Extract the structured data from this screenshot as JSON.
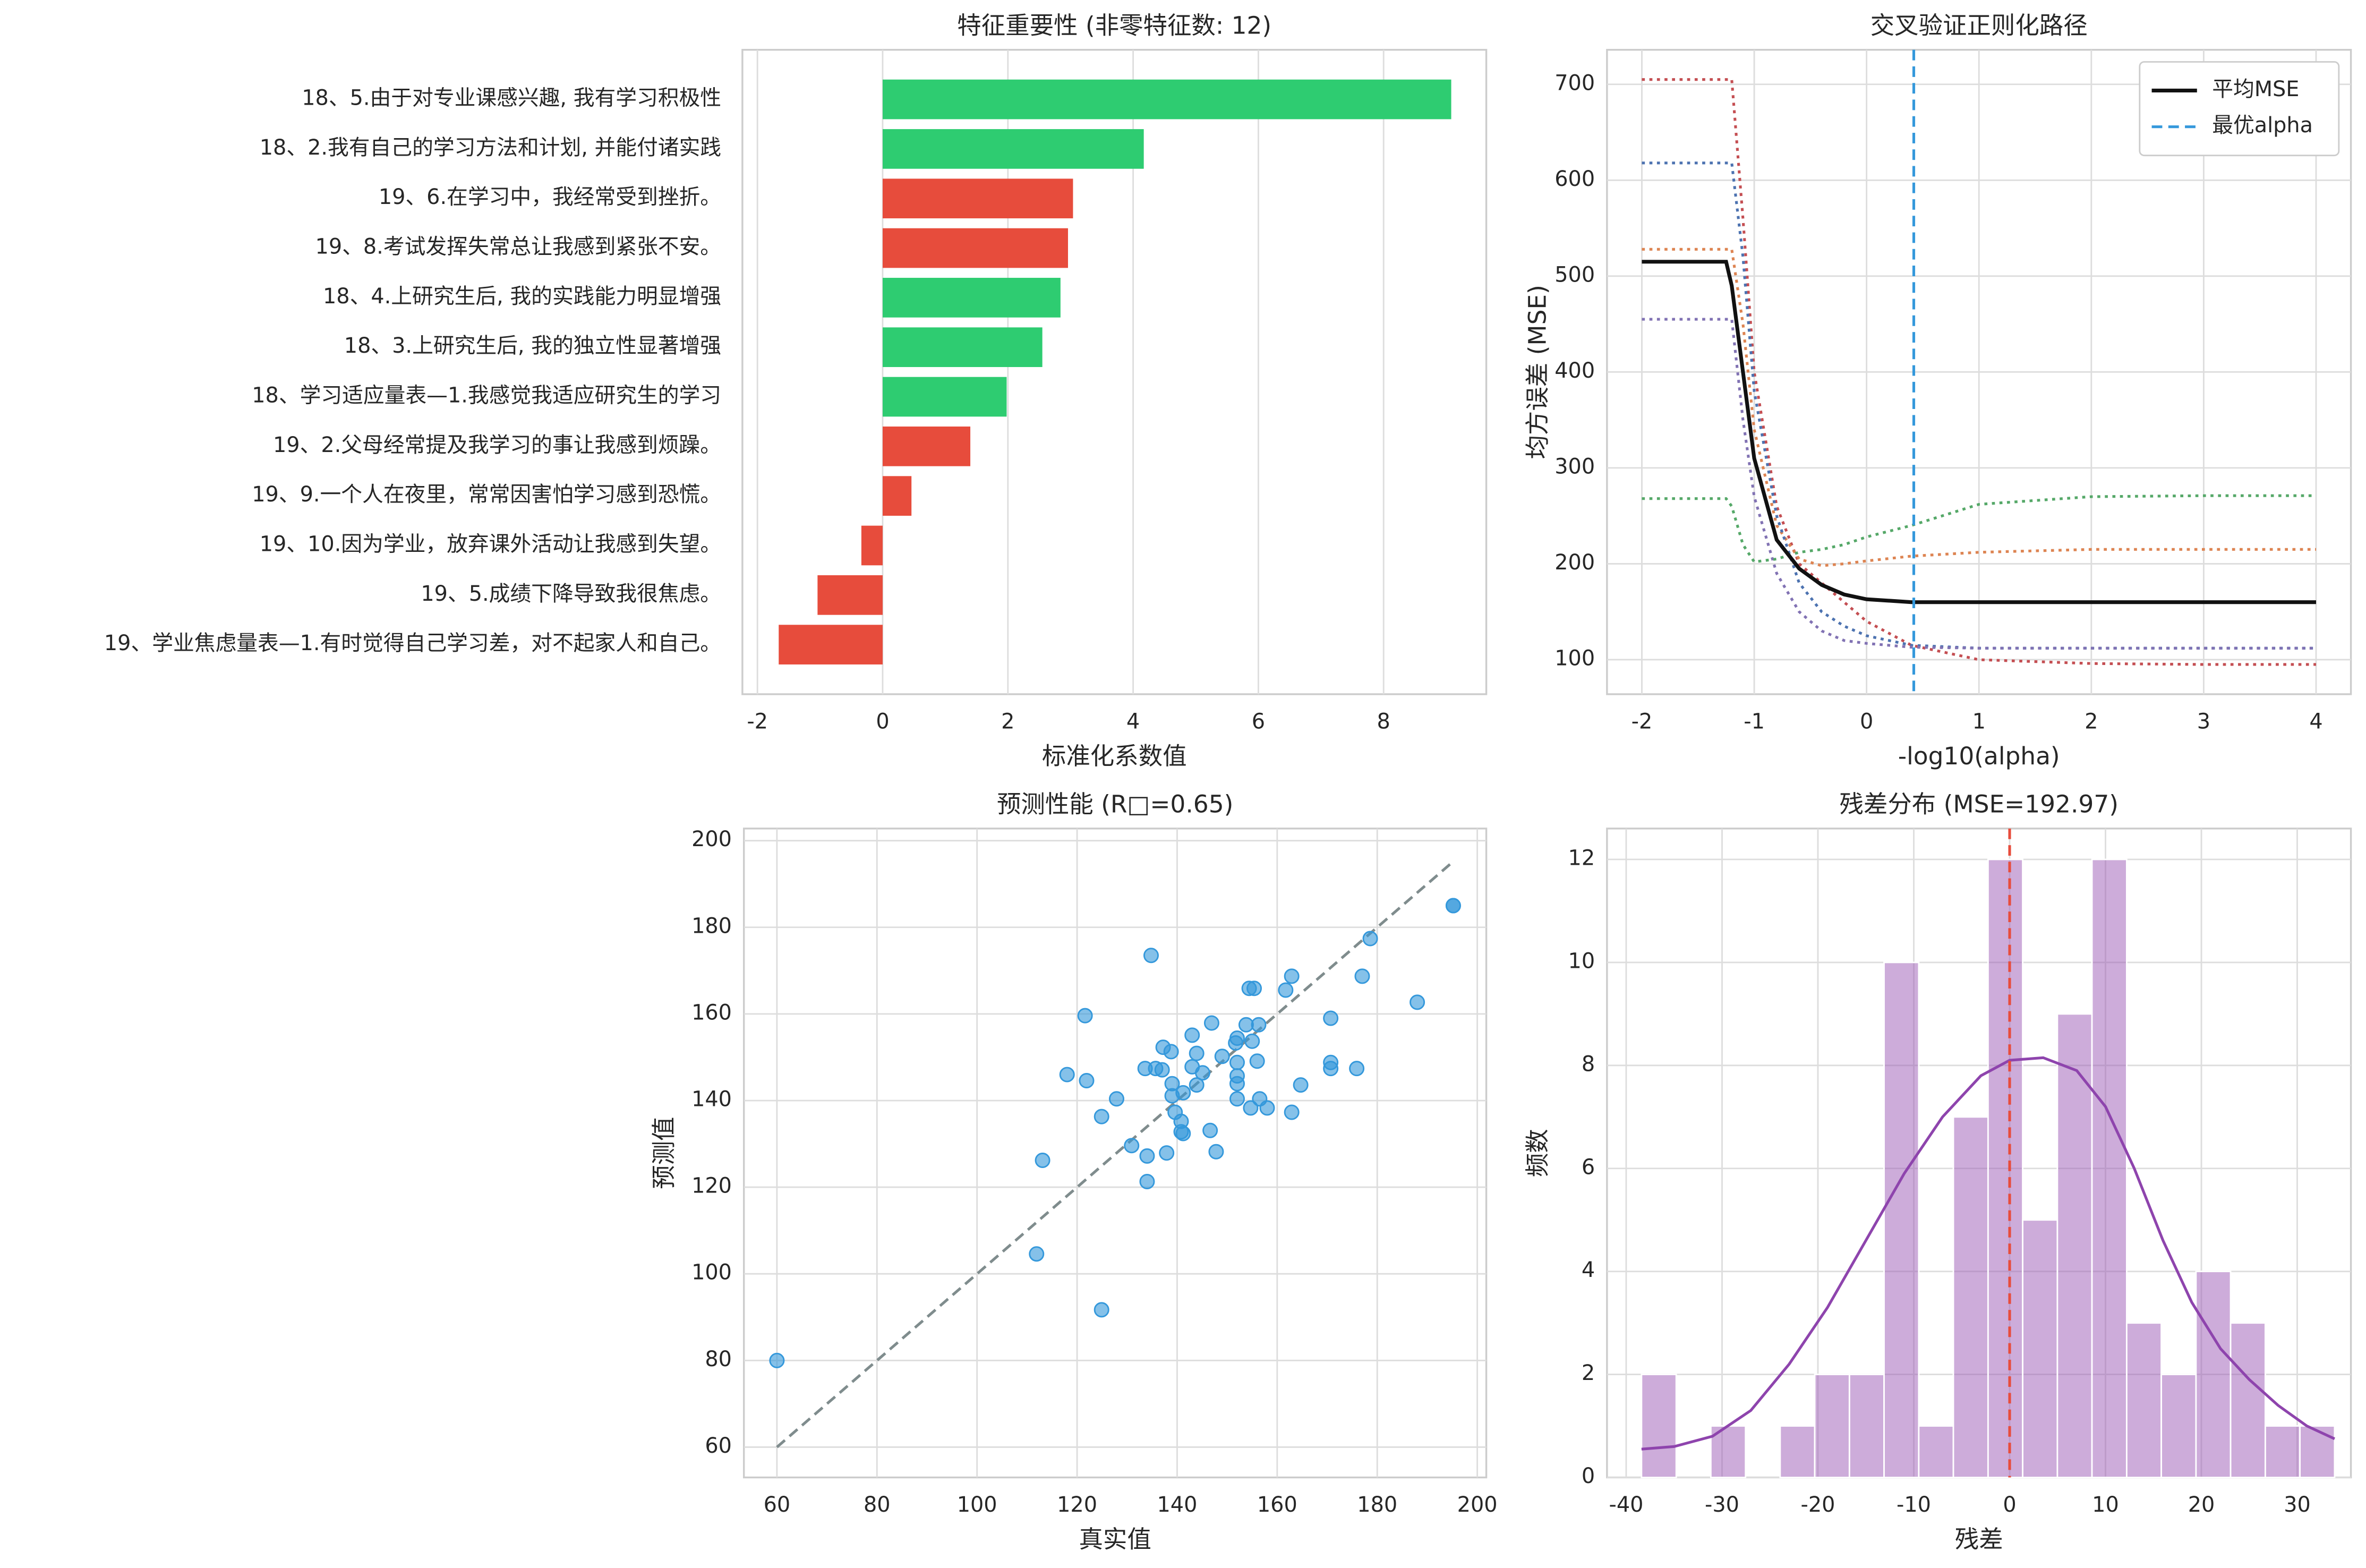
{
  "chart_data": [
    {
      "type": "barh",
      "title": "特征重要性 (非零特征数: 12)",
      "x_label": "标准化系数值",
      "categories": [
        "18、5.由于对专业课感兴趣, 我有学习积极性",
        "18、2.我有自己的学习方法和计划, 并能付诸实践",
        "19、6.在学习中，我经常受到挫折。",
        "19、8.考试发挥失常总让我感到紧张不安。",
        "18、4.上研究生后, 我的实践能力明显增强",
        "18、3.上研究生后, 我的独立性显著增强",
        "18、学习适应量表—1.我感觉我适应研究生的学习",
        "19、2.父母经常提及我学习的事让我感到烦躁。",
        "19、9.一个人在夜里，常常因害怕学习感到恐慌。",
        "19、10.因为学业，放弃课外活动让我感到失望。",
        "19、5.成绩下降导致我很焦虑。",
        "19、学业焦虑量表—1.有时觉得自己学习差，对不起家人和自己。"
      ],
      "values": [
        9.08,
        4.17,
        3.04,
        2.96,
        2.84,
        2.55,
        1.98,
        1.4,
        0.46,
        -0.34,
        -1.04,
        -1.66
      ],
      "colors": [
        "#2ecc71",
        "#2ecc71",
        "#e74c3c",
        "#e74c3c",
        "#2ecc71",
        "#2ecc71",
        "#2ecc71",
        "#e74c3c",
        "#e74c3c",
        "#e74c3c",
        "#e74c3c",
        "#e74c3c"
      ],
      "xlim": [
        -2.24,
        9.64
      ],
      "xticks": [
        -2,
        0,
        2,
        4,
        6,
        8
      ],
      "grid": true
    },
    {
      "type": "line",
      "title": "交叉验证正则化路径",
      "x_label": "-log10(alpha)",
      "y_label": "均方误差 (MSE)",
      "x": [
        -2,
        -1.25,
        -1.2,
        -1.1,
        -1.0,
        -0.8,
        -0.6,
        -0.4,
        -0.2,
        0,
        0.4,
        1,
        2,
        3,
        4
      ],
      "series": [
        {
          "color": "#c44e52",
          "linestyle": "dotted",
          "values": [
            705,
            705,
            705,
            560,
            400,
            260,
            200,
            180,
            160,
            140,
            115,
            100,
            96,
            95,
            95
          ]
        },
        {
          "color": "#dd8452",
          "linestyle": "dotted",
          "values": [
            528,
            528,
            528,
            450,
            340,
            240,
            205,
            198,
            200,
            203,
            208,
            212,
            215,
            215,
            215
          ]
        },
        {
          "color": "#4c72b0",
          "linestyle": "dotted",
          "values": [
            618,
            618,
            618,
            520,
            380,
            250,
            180,
            150,
            135,
            125,
            115,
            112,
            112,
            112,
            112
          ]
        },
        {
          "color": "#8172b3",
          "linestyle": "dotted",
          "values": [
            455,
            455,
            455,
            350,
            270,
            190,
            150,
            130,
            120,
            117,
            113,
            112,
            112,
            112,
            112
          ]
        },
        {
          "color": "#55a868",
          "linestyle": "dotted",
          "values": [
            268,
            268,
            260,
            220,
            202,
            205,
            212,
            215,
            220,
            228,
            240,
            262,
            270,
            271,
            271
          ]
        },
        {
          "name": "平均MSE",
          "color": "#111111",
          "linestyle": "solid",
          "values": [
            515,
            515,
            490,
            400,
            310,
            225,
            195,
            178,
            168,
            163,
            160,
            160,
            160,
            160,
            160
          ]
        }
      ],
      "vlines": [
        {
          "name": "最优alpha",
          "x": 0.42,
          "color": "#3498db"
        }
      ],
      "xlim": [
        -2.31,
        4.31
      ],
      "ylim": [
        64,
        736
      ],
      "xticks": [
        -2,
        -1,
        0,
        1,
        2,
        3,
        4
      ],
      "yticks": [
        100,
        200,
        300,
        400,
        500,
        600,
        700
      ],
      "grid": true,
      "legend": "upper-right"
    },
    {
      "type": "scatter",
      "title": "预测性能 (R□=0.65)",
      "x_label": "真实值",
      "y_label": "预测值",
      "color": "#3498db",
      "x": [
        60,
        195.2,
        195.2,
        178.6,
        188,
        177,
        170.7,
        170.7,
        170.7,
        175.9,
        162.9,
        161.7,
        164.7,
        162.9,
        155.4,
        154.4,
        153.8,
        156.3,
        155,
        156,
        156.5,
        158,
        154.7,
        152,
        151.7,
        152,
        152,
        152,
        152,
        149,
        146.9,
        143,
        143,
        145.1,
        143.9,
        143.9,
        137.2,
        138.8,
        137,
        139,
        139,
        141.2,
        139.6,
        140.8,
        140.8,
        146.6,
        147.8,
        137.9,
        134,
        130.9,
        134,
        134.8,
        121.6,
        121.9,
        118,
        127.9,
        124.9,
        133.6,
        135.7,
        113.1,
        111.9,
        124.9,
        141.2
      ],
      "values": [
        80,
        185,
        185,
        177.4,
        162.7,
        168.7,
        159,
        148.8,
        147.4,
        147.4,
        168.7,
        165.5,
        143.6,
        137.3,
        165.9,
        165.9,
        157.5,
        157.5,
        153.7,
        149.1,
        140.4,
        138.3,
        138.3,
        154.4,
        153.3,
        148.8,
        145.7,
        143.9,
        140.4,
        150.2,
        157.9,
        155.1,
        147.8,
        146.4,
        143.6,
        150.9,
        152.3,
        151.3,
        147.1,
        143.9,
        141.1,
        141.8,
        137.3,
        135.2,
        132.8,
        133.1,
        128.2,
        127.9,
        127.2,
        129.6,
        121.3,
        173.5,
        159.6,
        144.6,
        146,
        140.4,
        136.3,
        147.4,
        147.4,
        126.2,
        104.6,
        91.7,
        132.4
      ],
      "reference_line": {
        "x": [
          60,
          195
        ],
        "values": [
          60,
          195
        ],
        "color": "#7f8c8d"
      },
      "xlim": [
        53.4,
        201.8
      ],
      "ylim": [
        53,
        202.8
      ],
      "xticks": [
        60,
        80,
        100,
        120,
        140,
        160,
        180,
        200
      ],
      "yticks": [
        60,
        80,
        100,
        120,
        140,
        160,
        180,
        200
      ],
      "grid": true
    },
    {
      "type": "histogram",
      "title": "残差分布 (MSE=192.97)",
      "x_label": "残差",
      "y_label": "频数",
      "color": "#9b59b6",
      "bins": [
        -38.4,
        -34.78,
        -31.17,
        -27.55,
        -23.94,
        -20.33,
        -16.71,
        -13.1,
        -9.48,
        -5.87,
        -2.25,
        1.36,
        4.98,
        8.59,
        12.21,
        15.82,
        19.44,
        23.05,
        26.67,
        30.28,
        33.9
      ],
      "values": [
        2,
        0,
        1,
        0,
        1,
        2,
        2,
        10,
        1,
        7,
        12,
        5,
        9,
        12,
        3,
        2,
        4,
        3,
        1,
        1
      ],
      "kde": {
        "x": [
          -38.4,
          -35,
          -31,
          -27,
          -23,
          -19,
          -15,
          -11,
          -7,
          -3,
          0,
          3.5,
          7,
          10,
          13,
          16,
          19,
          22,
          25,
          28,
          31,
          33.9
        ],
        "values": [
          0.55,
          0.6,
          0.8,
          1.3,
          2.2,
          3.3,
          4.6,
          5.9,
          7.0,
          7.8,
          8.1,
          8.15,
          7.9,
          7.2,
          6.0,
          4.6,
          3.4,
          2.5,
          1.9,
          1.4,
          1.0,
          0.75
        ],
        "color": "#8e44ad"
      },
      "vlines": [
        {
          "x": 0,
          "color": "#e74c3c"
        }
      ],
      "xlim": [
        -42,
        35.6
      ],
      "ylim": [
        0,
        12.6
      ],
      "xticks": [
        -40,
        -30,
        -20,
        -10,
        0,
        10,
        20,
        30
      ],
      "yticks": [
        0,
        2,
        4,
        6,
        8,
        10,
        12
      ],
      "grid": true
    }
  ]
}
